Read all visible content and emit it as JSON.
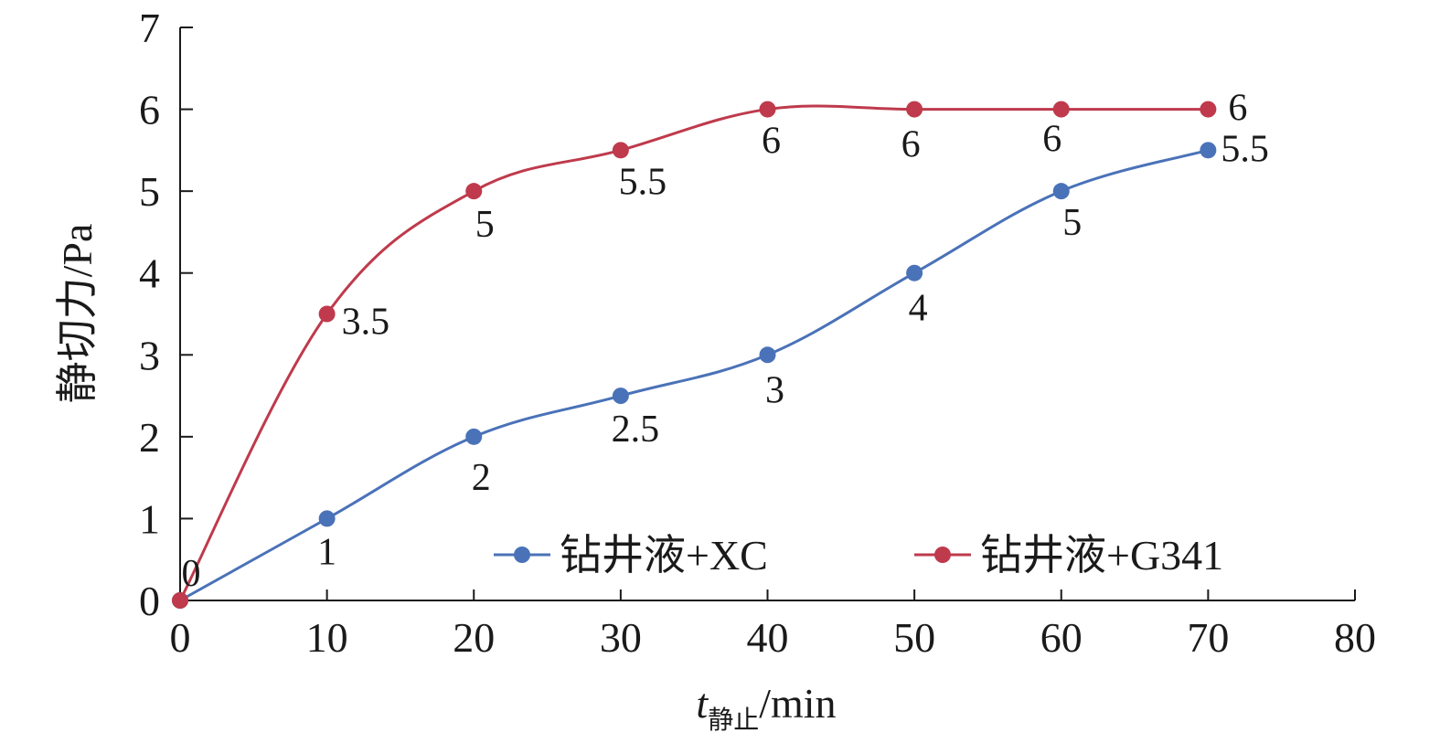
{
  "chart_data": {
    "type": "line",
    "x": [
      0,
      10,
      20,
      30,
      40,
      50,
      60,
      70
    ],
    "series": [
      {
        "name": "钻井液+XC",
        "color": "#4a72b8",
        "values": [
          0,
          1,
          2,
          2.5,
          3,
          4,
          5,
          5.5
        ],
        "labels": [
          "0",
          "1",
          "2",
          "2.5",
          "3",
          "4",
          "5",
          "5.5"
        ]
      },
      {
        "name": "钻井液+G341",
        "color": "#bf3a4c",
        "values": [
          0,
          3.5,
          5,
          5.5,
          6,
          6,
          6,
          6
        ],
        "labels": [
          "0",
          "3.5",
          "5",
          "5.5",
          "6",
          "6",
          "6",
          "6"
        ]
      }
    ],
    "xlim": [
      0,
      80
    ],
    "ylim": [
      0,
      7
    ],
    "xticks": [
      "0",
      "10",
      "20",
      "30",
      "40",
      "50",
      "60",
      "70",
      "80"
    ],
    "yticks": [
      "0",
      "1",
      "2",
      "3",
      "4",
      "5",
      "6",
      "7"
    ],
    "xlabel": {
      "main": "t",
      "sub": "静止",
      "unit": "/min"
    },
    "ylabel": "静切力/Pa",
    "legend_position": "bottom-right",
    "grid": false,
    "smooth": true
  }
}
